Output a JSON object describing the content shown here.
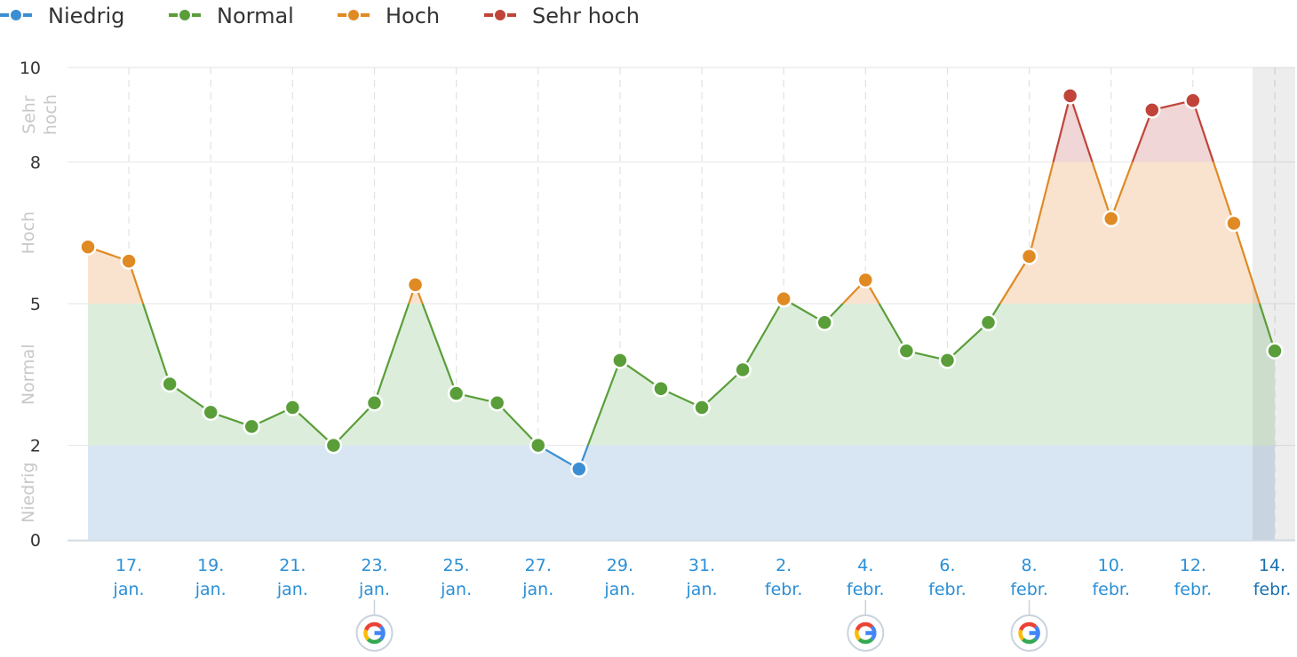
{
  "chart_data": {
    "type": "area",
    "legend": {
      "placement": "top-left",
      "items": [
        {
          "label": "Niedrig",
          "color": "#3b8ed1"
        },
        {
          "label": "Normal",
          "color": "#5a9e3a"
        },
        {
          "label": "Hoch",
          "color": "#e08a24"
        },
        {
          "label": "Sehr hoch",
          "color": "#c0443a"
        }
      ]
    },
    "ylim": [
      0,
      10
    ],
    "y_ticks": [
      "0",
      "2",
      "5",
      "8",
      "10"
    ],
    "y_bands": [
      {
        "label": "Niedrig",
        "from": 0,
        "to": 2,
        "fill": "#d8e6f3"
      },
      {
        "label": "Normal",
        "from": 2,
        "to": 5,
        "fill": "#dceedb"
      },
      {
        "label": "Hoch",
        "from": 5,
        "to": 8,
        "fill": "#f9e3cf"
      },
      {
        "label": "Sehr",
        "label2": "hoch",
        "from": 8,
        "to": 10,
        "fill": "#f0d6d6"
      }
    ],
    "x_tick_labels": [
      {
        "day": 17,
        "l1": "17.",
        "l2": "jan."
      },
      {
        "day": 19,
        "l1": "19.",
        "l2": "jan."
      },
      {
        "day": 21,
        "l1": "21.",
        "l2": "jan."
      },
      {
        "day": 23,
        "l1": "23.",
        "l2": "jan."
      },
      {
        "day": 25,
        "l1": "25.",
        "l2": "jan."
      },
      {
        "day": 27,
        "l1": "27.",
        "l2": "jan."
      },
      {
        "day": 29,
        "l1": "29.",
        "l2": "jan."
      },
      {
        "day": 31,
        "l1": "31.",
        "l2": "jan."
      },
      {
        "day": 33,
        "l1": "2.",
        "l2": "febr."
      },
      {
        "day": 35,
        "l1": "4.",
        "l2": "febr."
      },
      {
        "day": 37,
        "l1": "6.",
        "l2": "febr."
      },
      {
        "day": 39,
        "l1": "8.",
        "l2": "febr."
      },
      {
        "day": 41,
        "l1": "10.",
        "l2": "febr."
      },
      {
        "day": 43,
        "l1": "12.",
        "l2": "febr."
      },
      {
        "day": 45,
        "l1": "14.",
        "l2": "febr."
      }
    ],
    "series": [
      {
        "x": [
          16,
          17,
          18,
          19,
          20,
          21,
          22,
          23,
          24,
          25,
          26,
          27,
          28,
          29,
          30,
          31,
          32,
          33,
          34,
          35,
          36,
          37,
          38,
          39,
          40,
          41,
          42,
          43,
          44,
          45
        ],
        "y": [
          6.2,
          5.9,
          3.3,
          2.7,
          2.4,
          2.8,
          2.0,
          2.9,
          5.4,
          3.1,
          2.9,
          2.0,
          1.5,
          3.8,
          3.2,
          2.8,
          3.6,
          5.1,
          4.6,
          5.5,
          4.0,
          3.8,
          4.6,
          6.0,
          9.4,
          6.8,
          9.1,
          9.3,
          6.7,
          4.0
        ]
      }
    ],
    "projection_shaded_from": 44.5,
    "google_update_days": [
      23,
      35,
      39
    ],
    "google_icon": "google-g-icon"
  }
}
